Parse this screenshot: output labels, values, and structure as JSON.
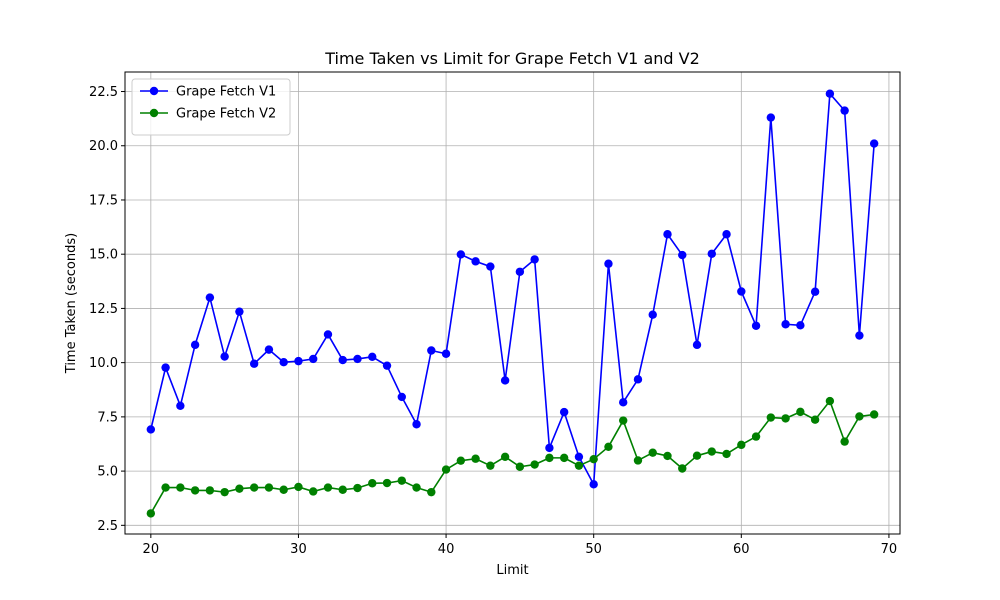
{
  "chart_data": {
    "type": "line",
    "title": "Time Taken vs Limit for Grape Fetch V1 and V2",
    "xlabel": "Limit",
    "ylabel": "Time Taken (seconds)",
    "xlim": [
      18.25,
      70.75
    ],
    "ylim": [
      2.1,
      23.4
    ],
    "xticks": [
      20,
      30,
      40,
      50,
      60,
      70
    ],
    "yticks": [
      2.5,
      5.0,
      7.5,
      10.0,
      12.5,
      15.0,
      17.5,
      20.0,
      22.5
    ],
    "ytick_labels": [
      "2.5",
      "5.0",
      "7.5",
      "10.0",
      "12.5",
      "15.0",
      "17.5",
      "20.0",
      "22.5"
    ],
    "grid": true,
    "legend_position": "top-left",
    "x": [
      20,
      21,
      22,
      23,
      24,
      25,
      26,
      27,
      28,
      29,
      30,
      31,
      32,
      33,
      34,
      35,
      36,
      37,
      38,
      39,
      40,
      41,
      42,
      43,
      44,
      45,
      46,
      47,
      48,
      49,
      50,
      51,
      52,
      53,
      54,
      55,
      56,
      57,
      58,
      59,
      60,
      61,
      62,
      63,
      64,
      65,
      66,
      67,
      68,
      69
    ],
    "series": [
      {
        "name": "Grape Fetch V1",
        "color": "#0000ff",
        "values": [
          6.92,
          9.77,
          8.01,
          10.82,
          13.0,
          10.28,
          12.35,
          9.95,
          10.6,
          10.02,
          10.07,
          10.17,
          11.3,
          10.12,
          10.17,
          10.27,
          9.86,
          8.42,
          7.16,
          10.56,
          10.41,
          14.99,
          14.67,
          14.43,
          9.18,
          14.19,
          14.76,
          6.07,
          7.72,
          5.66,
          4.39,
          14.56,
          8.17,
          9.23,
          12.21,
          15.92,
          14.96,
          10.82,
          15.02,
          15.92,
          13.28,
          11.7,
          21.3,
          11.77,
          11.72,
          13.27,
          22.4,
          21.62,
          11.25,
          20.1
        ]
      },
      {
        "name": "Grape Fetch V2",
        "color": "#008000",
        "values": [
          3.05,
          4.24,
          4.24,
          4.11,
          4.11,
          4.03,
          4.19,
          4.24,
          4.24,
          4.14,
          4.27,
          4.06,
          4.24,
          4.14,
          4.22,
          4.44,
          4.45,
          4.56,
          4.24,
          4.03,
          5.07,
          5.48,
          5.57,
          5.25,
          5.66,
          5.2,
          5.3,
          5.61,
          5.61,
          5.25,
          5.55,
          6.12,
          7.33,
          5.49,
          5.85,
          5.7,
          5.12,
          5.71,
          5.9,
          5.79,
          6.21,
          6.59,
          7.47,
          7.43,
          7.73,
          7.37,
          8.23,
          6.36,
          7.52,
          7.61
        ]
      }
    ]
  }
}
